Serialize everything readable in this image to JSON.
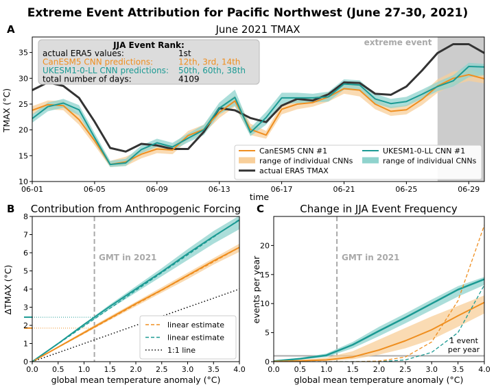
{
  "figure": {
    "title": "Extreme Event Attribution for Pacific Northwest (June 27-30, 2021)"
  },
  "colors": {
    "canesm": "#ef8e1f",
    "canesm_band": "#f8cf9a",
    "ukesm": "#1b9a93",
    "ukesm_band": "#8fd3cd",
    "era5": "#333333",
    "grey_text": "#a9a9a9",
    "shade": "#cccccc"
  },
  "chart_data": [
    {
      "id": "A",
      "type": "line",
      "panel_label": "A",
      "title": "June 2021 TMAX",
      "xlabel": "time",
      "ylabel": "TMAX (°C)",
      "xlim": [
        1,
        30
      ],
      "ylim": [
        10,
        38
      ],
      "xticks": [
        1,
        5,
        9,
        13,
        17,
        21,
        25,
        29
      ],
      "xticklabels": [
        "06-01",
        "06-05",
        "06-09",
        "06-13",
        "06-17",
        "06-21",
        "06-25",
        "06-29"
      ],
      "yticks": [
        10,
        15,
        20,
        25,
        30,
        35
      ],
      "x": [
        1,
        2,
        3,
        4,
        5,
        6,
        7,
        8,
        9,
        10,
        11,
        12,
        13,
        14,
        15,
        16,
        17,
        18,
        19,
        20,
        21,
        22,
        23,
        24,
        25,
        26,
        27,
        28,
        29,
        30
      ],
      "shaded_region": {
        "from": 27,
        "to": 30,
        "label": "extreme event"
      },
      "info_box": {
        "title": "JJA Event Rank:",
        "rows": [
          {
            "label": "actual ERA5 values:",
            "value": "1st",
            "color": "#000000"
          },
          {
            "label": "CanESM5 CNN predictions:",
            "value": "12th, 3rd, 14th",
            "color": "#ef8e1f"
          },
          {
            "label": "UKESM1-0-LL CNN predictions:",
            "value": "50th, 60th, 38th",
            "color": "#1b9a93"
          },
          {
            "label": "total number of days:",
            "value": "4109",
            "color": "#000000"
          }
        ]
      },
      "series": [
        {
          "name": "CanESM5 CNN #1",
          "color": "#ef8e1f",
          "values": [
            23.8,
            24.9,
            24.7,
            22.0,
            17.9,
            13.3,
            13.8,
            15.3,
            16.3,
            16.1,
            18.9,
            20.1,
            23.4,
            25.6,
            20.1,
            19.0,
            24.0,
            25.0,
            25.3,
            26.4,
            28.0,
            27.7,
            25.0,
            23.6,
            23.9,
            25.9,
            28.5,
            30.0,
            30.7,
            29.9
          ]
        },
        {
          "name": "range of individual CNNs",
          "kind": "band",
          "color": "#f8cf9a",
          "low": [
            23.0,
            24.0,
            23.8,
            21.0,
            17.0,
            12.8,
            13.0,
            14.5,
            15.5,
            15.3,
            18.0,
            19.3,
            22.3,
            24.5,
            19.0,
            18.3,
            23.0,
            24.0,
            24.5,
            25.5,
            27.0,
            26.5,
            24.0,
            22.7,
            23.0,
            24.8,
            27.2,
            28.7,
            29.5,
            29.0
          ],
          "high": [
            24.6,
            25.7,
            25.6,
            23.0,
            18.8,
            14.0,
            14.8,
            16.2,
            17.2,
            17.0,
            19.8,
            21.0,
            24.5,
            26.7,
            21.2,
            19.8,
            25.0,
            26.0,
            26.3,
            27.3,
            29.2,
            28.9,
            26.0,
            24.5,
            24.8,
            27.0,
            29.8,
            31.3,
            31.8,
            30.6
          ]
        },
        {
          "name": "actual ERA5 TMAX",
          "color": "#333333",
          "values": [
            27.7,
            29.2,
            28.5,
            26.2,
            21.6,
            16.5,
            15.8,
            17.3,
            17.0,
            16.3,
            16.3,
            19.6,
            24.2,
            23.8,
            22.3,
            21.5,
            24.7,
            26.0,
            25.7,
            26.9,
            29.2,
            29.1,
            27.0,
            26.8,
            28.4,
            31.5,
            34.9,
            36.6,
            36.6,
            34.9
          ]
        },
        {
          "name": "UKESM1-0-LL CNN #1",
          "color": "#1b9a93",
          "values": [
            22.2,
            24.5,
            25.2,
            23.9,
            18.5,
            13.3,
            13.6,
            16.2,
            17.5,
            16.7,
            18.4,
            20.0,
            24.2,
            26.3,
            19.5,
            22.4,
            26.2,
            26.2,
            26.2,
            26.4,
            28.9,
            28.7,
            26.0,
            25.1,
            25.5,
            26.9,
            28.4,
            29.5,
            32.3,
            32.2
          ]
        },
        {
          "name": "range of individual CNNs",
          "kind": "band",
          "color": "#8fd3cd",
          "low": [
            21.4,
            23.6,
            24.3,
            22.8,
            17.6,
            12.8,
            13.0,
            15.5,
            16.7,
            16.0,
            17.6,
            19.0,
            23.0,
            24.7,
            18.8,
            21.0,
            25.0,
            25.2,
            25.3,
            25.5,
            27.8,
            27.6,
            25.1,
            24.2,
            24.6,
            26.0,
            27.5,
            28.4,
            30.2,
            30.6
          ],
          "high": [
            23.0,
            25.3,
            26.0,
            24.8,
            19.4,
            14.0,
            14.4,
            17.0,
            18.3,
            17.5,
            19.3,
            21.0,
            25.3,
            27.8,
            20.4,
            23.5,
            27.2,
            27.2,
            27.0,
            27.4,
            29.8,
            29.6,
            27.0,
            26.0,
            26.4,
            27.8,
            29.3,
            30.6,
            33.0,
            32.8
          ]
        }
      ],
      "legend": {
        "left": [
          "CanESM5 CNN #1",
          "range of individual CNNs",
          "actual ERA5 TMAX"
        ],
        "right": [
          "UKESM1-0-LL CNN #1",
          "range of individual CNNs"
        ]
      }
    },
    {
      "id": "B",
      "type": "line",
      "panel_label": "B",
      "title": "Contribution from Anthropogenic Forcing",
      "xlabel": "global mean temperature anomaly (°C)",
      "ylabel": "ΔTMAX (°C)",
      "xlim": [
        0,
        4
      ],
      "ylim": [
        0,
        8
      ],
      "xticks": [
        0,
        0.5,
        1,
        1.5,
        2,
        2.5,
        3,
        3.5,
        4
      ],
      "xticklabels": [
        "0.0",
        "0.5",
        "1.0",
        "1.5",
        "2.0",
        "2.5",
        "3.0",
        "3.5",
        "4.0"
      ],
      "yticks": [
        0,
        1,
        2,
        3,
        4,
        5,
        6,
        7,
        8
      ],
      "vline": {
        "x": 1.2,
        "label": "GMT in 2021"
      },
      "hmarks": [
        {
          "y": 1.85,
          "color": "#ef8e1f"
        },
        {
          "y": 2.45,
          "color": "#1b9a93"
        }
      ],
      "x": [
        0,
        0.5,
        1.0,
        1.5,
        2.0,
        2.5,
        3.0,
        3.5,
        4.0
      ],
      "series": [
        {
          "name": "UKESM1-0-LL",
          "color": "#1b9a93",
          "values": [
            0,
            1.0,
            2.05,
            3.05,
            4.0,
            4.95,
            5.95,
            6.9,
            7.8
          ]
        },
        {
          "name": "UKESM1-0-LL range",
          "kind": "band",
          "color": "#8fd3cd",
          "low": [
            0,
            0.97,
            1.95,
            2.9,
            3.8,
            4.7,
            5.6,
            6.5,
            7.3
          ],
          "high": [
            0,
            1.03,
            2.1,
            3.15,
            4.15,
            5.15,
            6.2,
            7.2,
            8.05
          ]
        },
        {
          "name": "CanESM5",
          "color": "#ef8e1f",
          "values": [
            0,
            0.8,
            1.6,
            2.4,
            3.2,
            3.95,
            4.75,
            5.55,
            6.3
          ]
        },
        {
          "name": "CanESM5 range",
          "kind": "band",
          "color": "#f8cf9a",
          "low": [
            0,
            0.76,
            1.52,
            2.3,
            3.05,
            3.8,
            4.55,
            5.35,
            6.05
          ],
          "high": [
            0,
            0.84,
            1.68,
            2.5,
            3.3,
            4.1,
            4.9,
            5.7,
            6.5
          ]
        },
        {
          "name": "linear estimate",
          "kind": "dashed",
          "color": "#ef8e1f",
          "values": [
            0,
            0.79,
            1.57,
            2.36,
            3.15,
            3.93,
            4.72,
            5.5,
            6.29
          ]
        },
        {
          "name": "linear estimate",
          "kind": "dashed",
          "color": "#1b9a93",
          "values": [
            0,
            0.98,
            1.96,
            2.94,
            3.92,
            4.9,
            5.88,
            6.86,
            7.84
          ]
        },
        {
          "name": "1:1 line",
          "kind": "dotted",
          "color": "#000000",
          "values": [
            0,
            0.5,
            1.0,
            1.5,
            2.0,
            2.5,
            3.0,
            3.5,
            4.0
          ]
        }
      ],
      "legend": [
        "linear estimate",
        "linear estimate",
        "1:1 line"
      ]
    },
    {
      "id": "C",
      "type": "line",
      "panel_label": "C",
      "title": "Change in JJA Event Frequency",
      "xlabel": "global mean temperature anomaly (°C)",
      "ylabel": "events per year",
      "xlim": [
        0,
        4
      ],
      "ylim": [
        0,
        25
      ],
      "xticks": [
        0,
        0.5,
        1,
        1.5,
        2,
        2.5,
        3,
        3.5,
        4
      ],
      "xticklabels": [
        "0.0",
        "0.5",
        "1.0",
        "1.5",
        "2.0",
        "2.5",
        "3.0",
        "3.5",
        "4.0"
      ],
      "yticks": [
        0,
        5,
        10,
        15,
        20
      ],
      "vline": {
        "x": 1.2,
        "label": "GMT in 2021"
      },
      "hline": {
        "y": 1,
        "label_line1": "1 event",
        "label_line2": "per year"
      },
      "x": [
        0,
        0.5,
        1.0,
        1.5,
        2.0,
        2.5,
        3.0,
        3.5,
        4.0
      ],
      "series": [
        {
          "name": "UKESM1-0-LL",
          "color": "#1b9a93",
          "values": [
            0.1,
            0.5,
            1.1,
            2.9,
            5.3,
            7.6,
            10.0,
            12.4,
            14.2
          ]
        },
        {
          "name": "UKESM1-0-LL range",
          "kind": "band",
          "color": "#8fd3cd",
          "low": [
            0.05,
            0.35,
            0.8,
            2.3,
            4.4,
            6.6,
            8.9,
            11.2,
            13.2
          ],
          "high": [
            0.15,
            0.65,
            1.4,
            3.4,
            6.0,
            8.3,
            10.7,
            13.0,
            14.6
          ]
        },
        {
          "name": "CanESM5",
          "color": "#ef8e1f",
          "values": [
            0.05,
            0.15,
            0.3,
            0.8,
            2.0,
            3.6,
            5.5,
            7.9,
            10.2
          ]
        },
        {
          "name": "CanESM5 range",
          "kind": "band",
          "color": "#f8cf9a",
          "low": [
            0.02,
            0.08,
            0.15,
            0.4,
            1.2,
            2.3,
            3.8,
            6.0,
            8.3
          ],
          "high": [
            0.1,
            0.3,
            0.7,
            1.8,
            3.8,
            5.8,
            7.8,
            9.6,
            11.4
          ]
        },
        {
          "name": "CanESM5 linear estimate",
          "kind": "dashed",
          "color": "#ef8e1f",
          "values": [
            0,
            0,
            0,
            0,
            0.1,
            0.8,
            3.4,
            10.5,
            23.5
          ]
        },
        {
          "name": "UKESM1-0-LL linear estimate",
          "kind": "dashed",
          "color": "#1b9a93",
          "values": [
            0,
            0,
            0,
            0,
            0,
            0.3,
            1.6,
            5.0,
            13.2
          ]
        }
      ]
    }
  ]
}
